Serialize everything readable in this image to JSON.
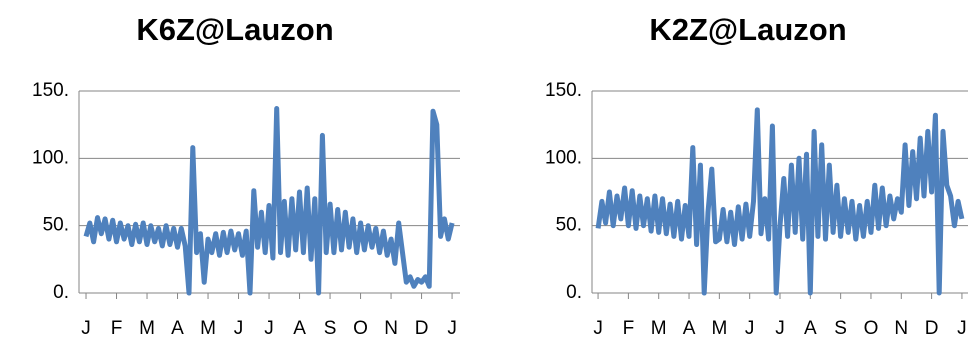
{
  "chart_data": [
    {
      "type": "line",
      "title": "K6Z@Lauzon",
      "x": [
        0,
        0.125,
        0.25,
        0.375,
        0.5,
        0.625,
        0.75,
        0.875,
        1,
        1.125,
        1.25,
        1.375,
        1.5,
        1.625,
        1.75,
        1.875,
        2,
        2.125,
        2.25,
        2.375,
        2.5,
        2.625,
        2.75,
        2.875,
        3,
        3.125,
        3.25,
        3.375,
        3.5,
        3.625,
        3.75,
        3.875,
        4,
        4.125,
        4.25,
        4.375,
        4.5,
        4.625,
        4.75,
        4.875,
        5,
        5.125,
        5.25,
        5.375,
        5.5,
        5.625,
        5.75,
        5.875,
        6,
        6.125,
        6.25,
        6.375,
        6.5,
        6.625,
        6.75,
        6.875,
        7,
        7.125,
        7.25,
        7.375,
        7.5,
        7.625,
        7.75,
        7.875,
        8,
        8.125,
        8.25,
        8.375,
        8.5,
        8.625,
        8.75,
        8.875,
        9,
        9.125,
        9.25,
        9.375,
        9.5,
        9.625,
        9.75,
        9.875,
        10,
        10.125,
        10.25,
        10.375,
        10.5,
        10.625,
        10.75,
        10.875,
        11,
        11.125,
        11.25,
        11.375,
        11.5,
        11.625,
        11.75,
        11.875,
        12
      ],
      "series": [
        {
          "color": "#4f81bd",
          "values": [
            42,
            52,
            38,
            56,
            44,
            55,
            40,
            54,
            38,
            52,
            40,
            50,
            36,
            51,
            38,
            52,
            36,
            50,
            38,
            48,
            35,
            50,
            36,
            48,
            34,
            48,
            35,
            0,
            108,
            30,
            44,
            8,
            40,
            30,
            44,
            28,
            45,
            30,
            46,
            32,
            44,
            28,
            46,
            0,
            76,
            34,
            60,
            30,
            65,
            26,
            137,
            30,
            68,
            28,
            70,
            32,
            75,
            30,
            78,
            25,
            70,
            0,
            117,
            30,
            66,
            30,
            62,
            32,
            60,
            34,
            55,
            30,
            52,
            32,
            50,
            34,
            48,
            30,
            46,
            28,
            40,
            22,
            52,
            30,
            8,
            12,
            5,
            10,
            8,
            12,
            5,
            135,
            125,
            42,
            55,
            40,
            52
          ]
        }
      ],
      "xlim": [
        -0.23,
        12.26
      ],
      "xticks": [
        {
          "value": 0,
          "label": "J"
        },
        {
          "value": 1,
          "label": "F"
        },
        {
          "value": 2,
          "label": "M"
        },
        {
          "value": 3,
          "label": "A"
        },
        {
          "value": 4,
          "label": "M"
        },
        {
          "value": 5,
          "label": "J"
        },
        {
          "value": 6,
          "label": "J"
        },
        {
          "value": 7,
          "label": "A"
        },
        {
          "value": 8,
          "label": "S"
        },
        {
          "value": 9,
          "label": "O"
        },
        {
          "value": 10,
          "label": "N"
        },
        {
          "value": 11,
          "label": "D"
        },
        {
          "value": 12,
          "label": "J"
        }
      ],
      "ylim": [
        0,
        150
      ],
      "yticks": [
        {
          "value": 0,
          "label": "0."
        },
        {
          "value": 50,
          "label": "50."
        },
        {
          "value": 100,
          "label": "100."
        },
        {
          "value": 150,
          "label": "150."
        }
      ],
      "grid": true
    },
    {
      "type": "line",
      "title": "K2Z@Lauzon",
      "x": [
        0,
        0.125,
        0.25,
        0.375,
        0.5,
        0.625,
        0.75,
        0.875,
        1,
        1.125,
        1.25,
        1.375,
        1.5,
        1.625,
        1.75,
        1.875,
        2,
        2.125,
        2.25,
        2.375,
        2.5,
        2.625,
        2.75,
        2.875,
        3,
        3.125,
        3.25,
        3.375,
        3.5,
        3.625,
        3.75,
        3.875,
        4,
        4.125,
        4.25,
        4.375,
        4.5,
        4.625,
        4.75,
        4.875,
        5,
        5.125,
        5.25,
        5.375,
        5.5,
        5.625,
        5.75,
        5.875,
        6,
        6.125,
        6.25,
        6.375,
        6.5,
        6.625,
        6.75,
        6.875,
        7,
        7.125,
        7.25,
        7.375,
        7.5,
        7.625,
        7.75,
        7.875,
        8,
        8.125,
        8.25,
        8.375,
        8.5,
        8.625,
        8.75,
        8.875,
        9,
        9.125,
        9.25,
        9.375,
        9.5,
        9.625,
        9.75,
        9.875,
        10,
        10.125,
        10.25,
        10.375,
        10.5,
        10.625,
        10.75,
        10.875,
        11,
        11.125,
        11.25,
        11.375,
        11.5,
        11.625,
        11.75,
        11.875,
        12
      ],
      "series": [
        {
          "color": "#4f81bd",
          "values": [
            48,
            68,
            52,
            75,
            50,
            72,
            55,
            78,
            50,
            76,
            48,
            72,
            50,
            70,
            46,
            72,
            45,
            70,
            44,
            66,
            42,
            68,
            40,
            65,
            42,
            108,
            36,
            95,
            0,
            60,
            92,
            38,
            40,
            62,
            38,
            60,
            36,
            64,
            40,
            66,
            42,
            68,
            136,
            44,
            70,
            40,
            124,
            0,
            50,
            85,
            42,
            95,
            45,
            100,
            40,
            103,
            0,
            120,
            42,
            110,
            40,
            95,
            45,
            80,
            42,
            70,
            45,
            68,
            40,
            65,
            42,
            68,
            45,
            80,
            48,
            78,
            50,
            72,
            55,
            70,
            60,
            110,
            65,
            105,
            70,
            115,
            72,
            120,
            75,
            132,
            0,
            120,
            80,
            72,
            50,
            68,
            55
          ]
        }
      ],
      "xlim": [
        -0.2,
        12.2
      ],
      "xticks": [
        {
          "value": 0,
          "label": "J"
        },
        {
          "value": 1,
          "label": "F"
        },
        {
          "value": 2,
          "label": "M"
        },
        {
          "value": 3,
          "label": "A"
        },
        {
          "value": 4,
          "label": "M"
        },
        {
          "value": 5,
          "label": "J"
        },
        {
          "value": 6,
          "label": "J"
        },
        {
          "value": 7,
          "label": "A"
        },
        {
          "value": 8,
          "label": "S"
        },
        {
          "value": 9,
          "label": "O"
        },
        {
          "value": 10,
          "label": "N"
        },
        {
          "value": 11,
          "label": "D"
        },
        {
          "value": 12,
          "label": "J"
        }
      ],
      "ylim": [
        0,
        150
      ],
      "yticks": [
        {
          "value": 0,
          "label": "0."
        },
        {
          "value": 50,
          "label": "50."
        },
        {
          "value": 100,
          "label": "100."
        },
        {
          "value": 150,
          "label": "150."
        }
      ],
      "grid": true
    }
  ]
}
